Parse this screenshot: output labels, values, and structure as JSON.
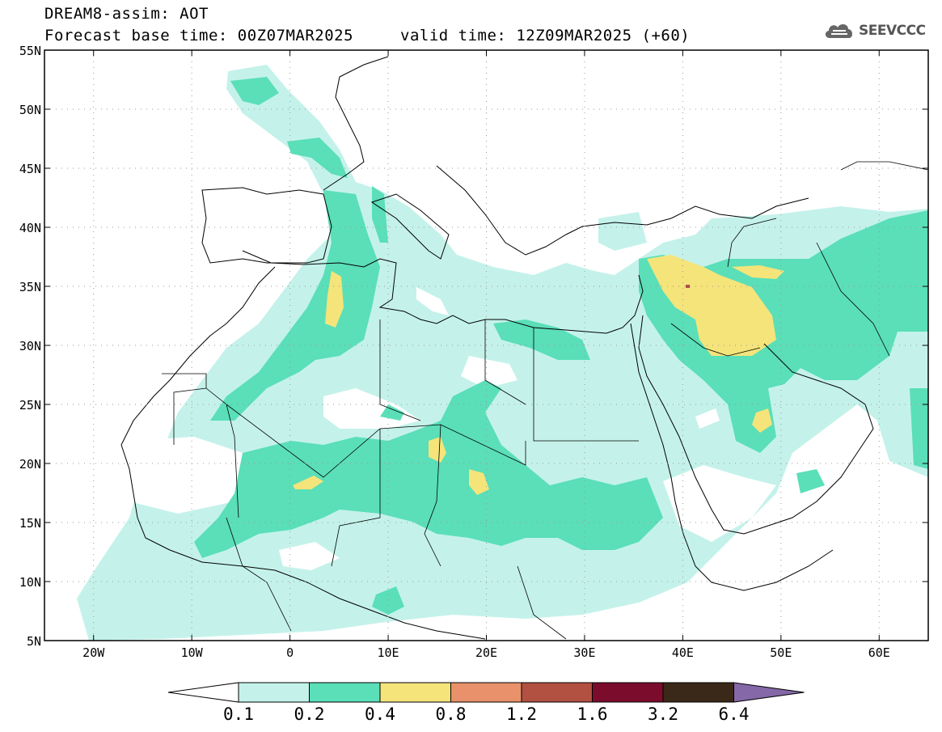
{
  "header": {
    "title": "DREAM8-assim: AOT",
    "base_time": "Forecast base time: 00Z07MAR2025",
    "valid_time": "valid time: 12Z09MAR2025 (+60)"
  },
  "logo": {
    "text": "SEEVCCC",
    "icon": "cloud-icon"
  },
  "map": {
    "lat_labels": [
      "55N",
      "50N",
      "45N",
      "40N",
      "35N",
      "30N",
      "25N",
      "20N",
      "15N",
      "10N",
      "5N"
    ],
    "lon_labels": [
      "20W",
      "10W",
      "0",
      "10E",
      "20E",
      "30E",
      "40E",
      "50E",
      "60E"
    ],
    "lat_range": [
      5,
      55
    ],
    "lon_range": [
      -25,
      65
    ],
    "grid": "dotted"
  },
  "legend": {
    "labels": [
      "0.1",
      "0.2",
      "0.4",
      "0.8",
      "1.2",
      "1.6",
      "3.2",
      "6.4"
    ],
    "colors": [
      "#ffffff",
      "#c4f2ea",
      "#5adfb8",
      "#f5e47a",
      "#e8916a",
      "#b25042",
      "#7c0c2c",
      "#3a2818",
      "#8468a8"
    ]
  }
}
